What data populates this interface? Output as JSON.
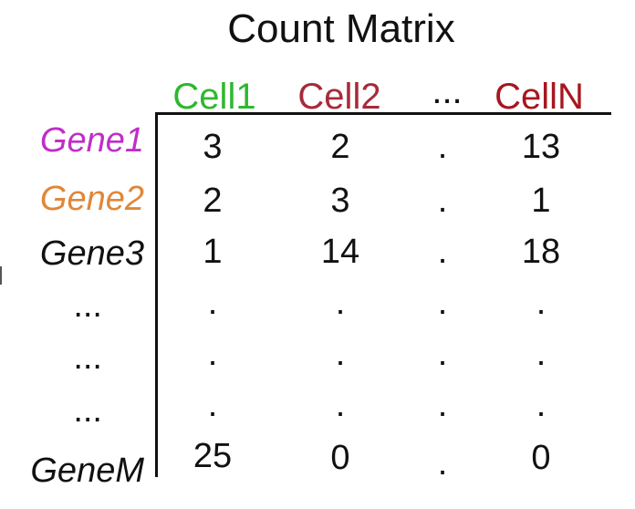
{
  "title": "Count Matrix",
  "colors": {
    "cell1": "#2eb82e",
    "cell2": "#a82a3a",
    "cellN": "#a8161f",
    "gene1": "#c02ec9",
    "gene2": "#e0873a",
    "default": "#111111"
  },
  "columns": [
    {
      "label": "Cell1"
    },
    {
      "label": "Cell2"
    },
    {
      "label": "..."
    },
    {
      "label": "CellN"
    }
  ],
  "rows": [
    {
      "label": "Gene1",
      "values": [
        "3",
        "2",
        ".",
        "13"
      ]
    },
    {
      "label": "Gene2",
      "values": [
        "2",
        "3",
        ".",
        "1"
      ]
    },
    {
      "label": "Gene3",
      "values": [
        "1",
        "14",
        ".",
        "18"
      ]
    },
    {
      "label": "...",
      "values": [
        ".",
        ".",
        ".",
        "."
      ]
    },
    {
      "label": "...",
      "values": [
        ".",
        ".",
        ".",
        "."
      ]
    },
    {
      "label": "...",
      "values": [
        ".",
        ".",
        ".",
        "."
      ]
    },
    {
      "label": "GeneM",
      "values": [
        "25",
        "0",
        ".",
        "0"
      ]
    }
  ]
}
